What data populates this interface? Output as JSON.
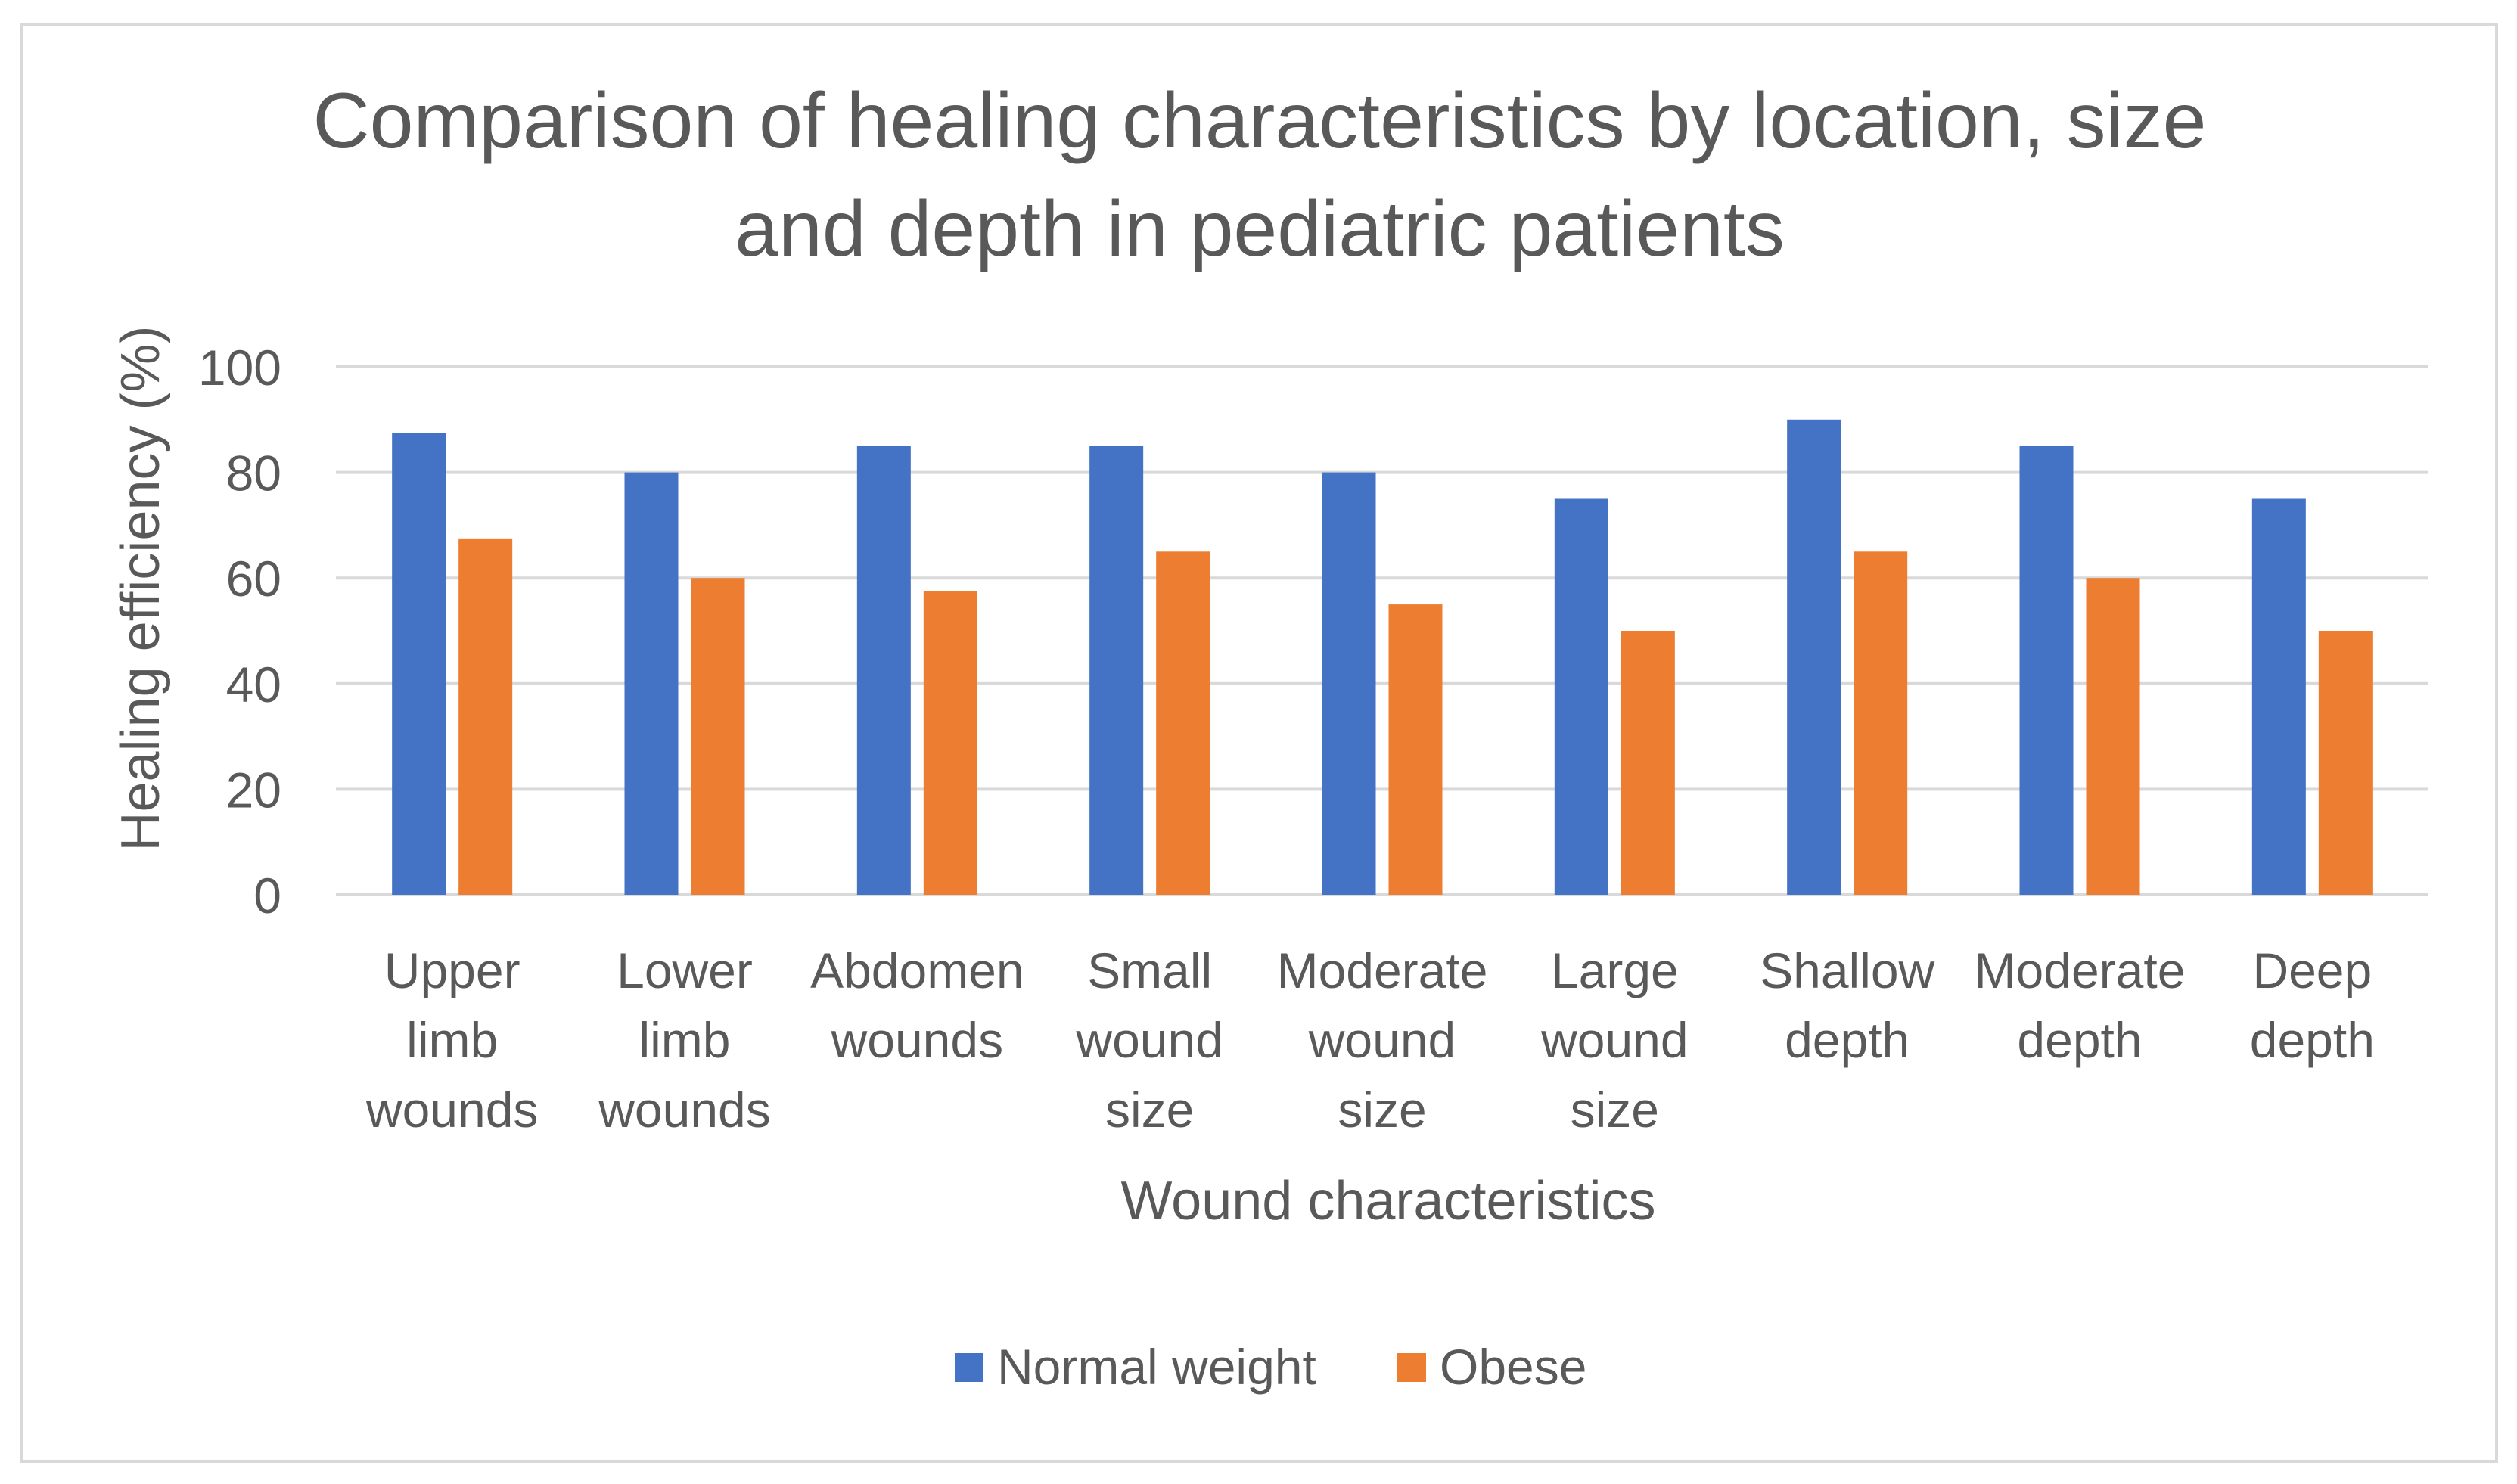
{
  "chart_data": {
    "type": "bar",
    "title_lines": [
      "Comparison of healing characteristics by location, size",
      "and depth in pediatric patients"
    ],
    "xlabel": "Wound characteristics",
    "ylabel": "Healing efficiency (%)",
    "ylim": [
      0,
      100
    ],
    "yticks": [
      0,
      20,
      40,
      60,
      80,
      100
    ],
    "grid": true,
    "legend_position": "bottom",
    "categories": [
      [
        "Upper",
        "limb",
        "wounds"
      ],
      [
        "Lower",
        "limb",
        "wounds"
      ],
      [
        "Abdomen",
        "wounds"
      ],
      [
        "Small",
        "wound",
        "size"
      ],
      [
        "Moderate",
        "wound",
        "size"
      ],
      [
        "Large",
        "wound",
        "size"
      ],
      [
        "Shallow",
        "depth"
      ],
      [
        "Moderate",
        "depth"
      ],
      [
        "Deep",
        "depth"
      ]
    ],
    "series": [
      {
        "name": "Normal weight",
        "color": "#4472C4",
        "values": [
          87.5,
          80,
          85,
          85,
          80,
          75,
          90,
          85,
          75
        ]
      },
      {
        "name": "Obese",
        "color": "#ED7D31",
        "values": [
          67.5,
          60,
          57.5,
          65,
          55,
          50,
          65,
          60,
          50
        ]
      }
    ],
    "colors": {
      "text": "#595959",
      "gridline": "#D9D9D9",
      "axis": "#D9D9D9",
      "frame": "#D9D9D9"
    }
  }
}
